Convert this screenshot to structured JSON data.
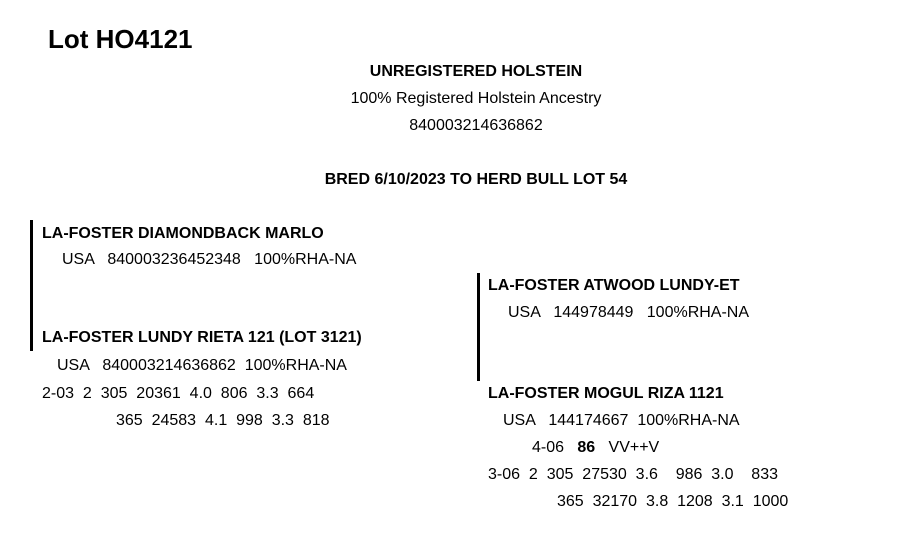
{
  "title": "Lot HO4121",
  "header": {
    "line1": "UNREGISTERED HOLSTEIN",
    "line2": "100% Registered Holstein Ancestry",
    "line3": "840003214636862",
    "bred": "BRED 6/10/2023 TO HERD BULL LOT 54"
  },
  "sire": {
    "name": "LA-FOSTER DIAMONDBACK MARLO",
    "reg": "USA   840003236452348   100%RHA-NA"
  },
  "dam": {
    "name": "LA-FOSTER LUNDY RIETA 121 (LOT 3121)",
    "reg": "USA   840003214636862  100%RHA-NA",
    "record1": "2-03  2  305  20361  4.0  806  3.3  664",
    "record2": "365  24583  4.1  998  3.3  818"
  },
  "dam_sire": {
    "name": "LA-FOSTER ATWOOD LUNDY-ET",
    "reg": "USA   144978449   100%RHA-NA"
  },
  "dam_dam": {
    "name": "LA-FOSTER MOGUL RIZA 1121",
    "reg": "USA   144174667  100%RHA-NA",
    "class_age": "4-06",
    "score": "86",
    "class": "VV++V",
    "record1": "3-06  2  305  27530  3.6    986  3.0    833",
    "record2": "365  32170  3.8  1208  3.1  1000"
  }
}
